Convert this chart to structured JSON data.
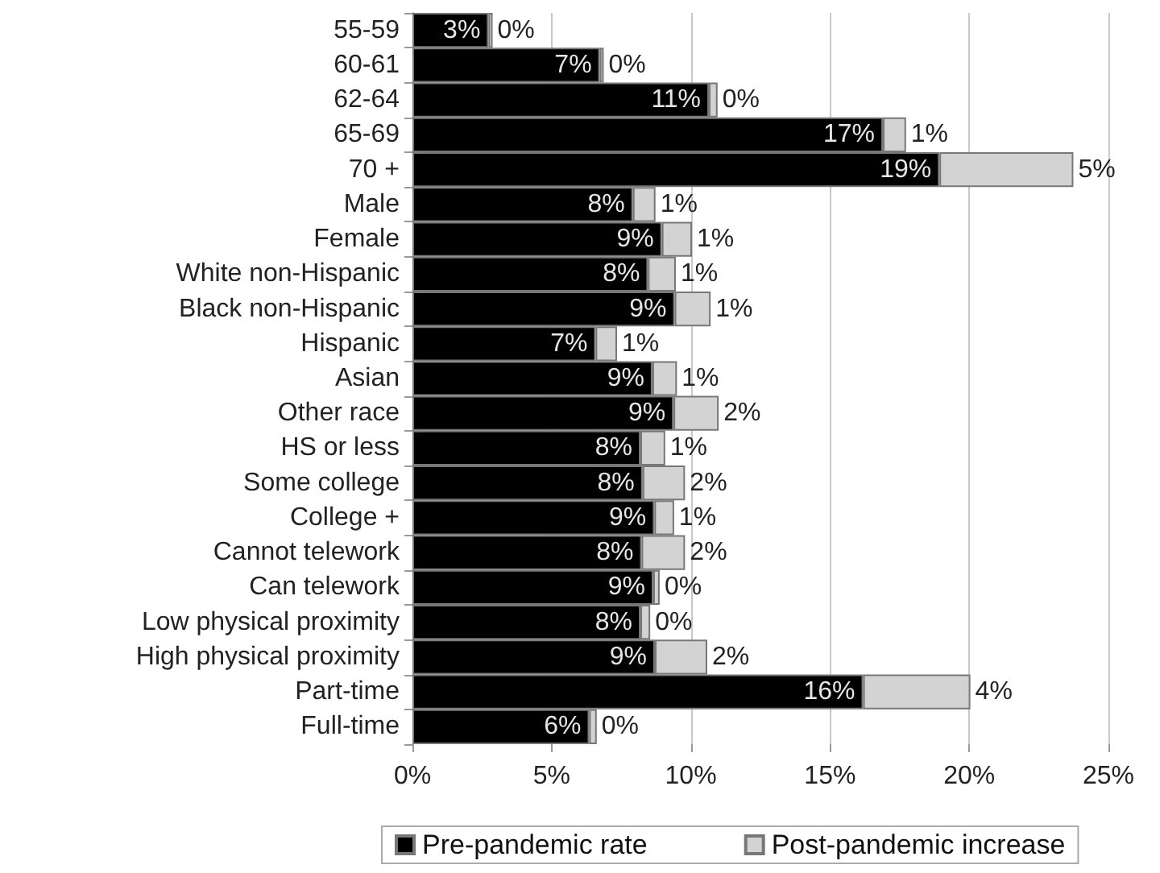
{
  "chart_data": {
    "type": "bar",
    "orientation": "horizontal",
    "stacked": true,
    "categories": [
      "55-59",
      "60-61",
      "62-64",
      "65-69",
      "70 +",
      "Male",
      "Female",
      "White non-Hispanic",
      "Black non-Hispanic",
      "Hispanic",
      "Asian",
      "Other race",
      "HS or less",
      "Some college",
      "College +",
      "Cannot telework",
      "Can telework",
      "Low physical proximity",
      "High physical proximity",
      "Part-time",
      "Full-time"
    ],
    "series": [
      {
        "name": "Pre-pandemic rate",
        "color": "#000000",
        "values": [
          2.73,
          6.73,
          10.65,
          16.9,
          18.93,
          7.92,
          8.96,
          8.46,
          9.42,
          6.58,
          8.62,
          9.38,
          8.19,
          8.27,
          8.69,
          8.23,
          8.65,
          8.19,
          8.71,
          16.19,
          6.35
        ],
        "value_labels": [
          "3%",
          "7%",
          "11%",
          "17%",
          "19%",
          "8%",
          "9%",
          "8%",
          "9%",
          "7%",
          "9%",
          "9%",
          "8%",
          "8%",
          "9%",
          "8%",
          "9%",
          "8%",
          "9%",
          "16%",
          "6%"
        ]
      },
      {
        "name": "Post-pandemic increase",
        "color": "#d3d3d3",
        "values": [
          0.15,
          0.14,
          0.31,
          0.83,
          4.81,
          0.81,
          1.08,
          1.0,
          1.29,
          0.77,
          0.88,
          1.62,
          0.89,
          1.52,
          0.71,
          1.56,
          0.23,
          0.35,
          1.88,
          3.85,
          0.27
        ],
        "value_labels": [
          "0%",
          "0%",
          "0%",
          "1%",
          "5%",
          "1%",
          "1%",
          "1%",
          "1%",
          "1%",
          "1%",
          "2%",
          "1%",
          "2%",
          "1%",
          "2%",
          "0%",
          "0%",
          "2%",
          "4%",
          "0%"
        ]
      }
    ],
    "xlim": [
      0,
      25
    ],
    "xticks": [
      {
        "value": 0,
        "label": "0%"
      },
      {
        "value": 5,
        "label": "5%"
      },
      {
        "value": 10,
        "label": "10%"
      },
      {
        "value": 15,
        "label": "15%"
      },
      {
        "value": 20,
        "label": "20%"
      },
      {
        "value": 25,
        "label": "25%"
      }
    ],
    "grid": "x",
    "legend": "bottom"
  }
}
